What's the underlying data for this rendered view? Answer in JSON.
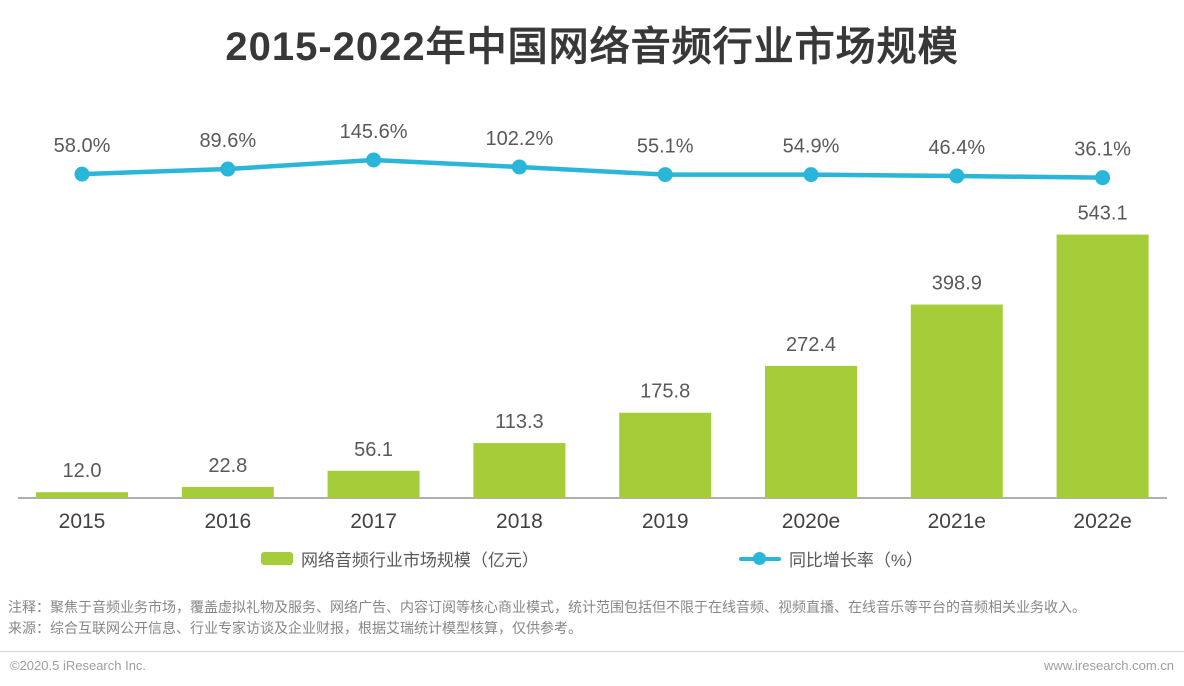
{
  "title": "2015-2022年中国网络音频行业市场规模",
  "chart_data": {
    "type": "bar",
    "combo": "bar+line",
    "categories": [
      "2015",
      "2016",
      "2017",
      "2018",
      "2019",
      "2020e",
      "2021e",
      "2022e"
    ],
    "series": [
      {
        "name": "网络音频行业市场规模（亿元）",
        "type": "bar",
        "values": [
          12.0,
          22.8,
          56.1,
          113.3,
          175.8,
          272.4,
          398.9,
          543.1
        ],
        "labels": [
          "12.0",
          "22.8",
          "56.1",
          "113.3",
          "175.8",
          "272.4",
          "398.9",
          "543.1"
        ],
        "color": "#a5cd39"
      },
      {
        "name": "同比增长率（%）",
        "type": "line",
        "values": [
          58.0,
          89.6,
          145.6,
          102.2,
          55.1,
          54.9,
          46.4,
          36.1
        ],
        "labels": [
          "58.0%",
          "89.6%",
          "145.6%",
          "102.2%",
          "55.1%",
          "54.9%",
          "46.4%",
          "36.1%"
        ],
        "color": "#29b6d8"
      }
    ],
    "title": "2015-2022年中国网络音频行业市场规模",
    "xlabel": "",
    "ylabel": "",
    "bar_axis_range": [
      0,
      600
    ],
    "grid": false,
    "legend_position": "bottom",
    "data_labels": true
  },
  "legend": [
    {
      "label": "网络音频行业市场规模（亿元）",
      "color": "#a5cd39"
    },
    {
      "label": "同比增长率（%）",
      "color": "#29b6d8"
    }
  ],
  "notes": {
    "annotation": "注释：聚焦于音频业务市场，覆盖虚拟礼物及服务、网络广告、内容订阅等核心商业模式，统计范围包括但不限于在线音频、视频直播、在线音乐等平台的音频相关业务收入。",
    "source": "来源：综合互联网公开信息、行业专家访谈及企业财报，根据艾瑞统计模型核算，仅供参考。"
  },
  "footer": {
    "left": "©2020.5 iResearch Inc.",
    "right": "www.iresearch.com.cn"
  },
  "colors": {
    "bar": "#a5cd39",
    "line": "#29b6d8",
    "title_text": "#383838",
    "value_label": "#595959",
    "axis_line": "#b0b0b0",
    "note_text": "#878787",
    "footer_text": "#9e9e9e"
  }
}
